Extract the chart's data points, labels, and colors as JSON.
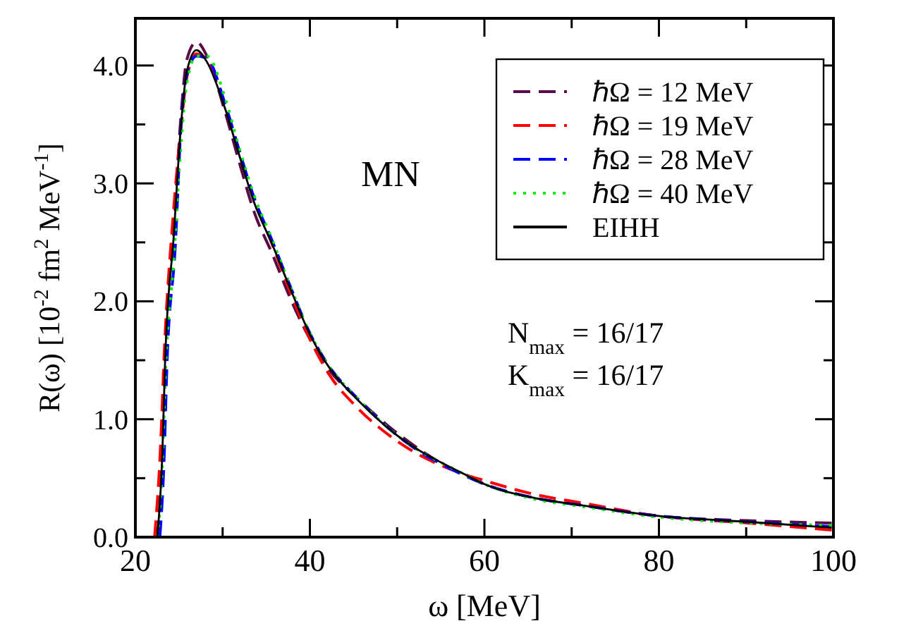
{
  "chart_data": {
    "type": "line",
    "xlabel": "ω [MeV]",
    "ylabel": "R(ω) [10$^{-2}$ fm$^{2}$ MeV$^{-1}$]",
    "annotations": [
      "MN",
      "N$_{max}$ = 16/17",
      "K$_{max}$ = 16/17"
    ],
    "xlim": [
      20,
      100
    ],
    "xticks": [
      20,
      {
        "value": 30,
        "label": null
      },
      40,
      {
        "value": 50,
        "label": null
      },
      60,
      {
        "value": 70,
        "label": null
      },
      80,
      {
        "value": 90,
        "label": null
      },
      100
    ],
    "ylim": [
      0,
      4.4
    ],
    "yticks": [
      {
        "value": 0,
        "label": "0.0"
      },
      {
        "value": 0.5,
        "label": null
      },
      {
        "value": 1,
        "label": "1.0"
      },
      {
        "value": 1.5,
        "label": null
      },
      {
        "value": 2,
        "label": "2.0"
      },
      {
        "value": 2.5,
        "label": null
      },
      {
        "value": 3,
        "label": "3.0"
      },
      {
        "value": 3.5,
        "label": null
      },
      {
        "value": 4,
        "label": "4.0"
      }
    ],
    "grid": false,
    "legend": "top right",
    "marker": "none",
    "x": [
      22.5,
      23.1,
      23.4,
      24.4,
      25.2,
      25.9,
      27,
      28.2,
      30.3,
      31.9,
      33.6,
      35.7,
      37.9,
      40,
      42.2,
      45.4,
      49.7,
      57.8,
      60,
      65.9,
      71.2,
      79.9,
      90.1,
      99.8
    ],
    "series": [
      {
        "name": "ℏΩ = 12 MeV",
        "color": "#5a0a46",
        "line_style": "dashed",
        "values": [
          0,
          0.75,
          1.5,
          2.6,
          3.55,
          4.05,
          4.2,
          4.08,
          3.6,
          3.18,
          2.76,
          2.4,
          2.0,
          1.68,
          1.42,
          1.18,
          0.9,
          0.52,
          0.45,
          0.33,
          0.27,
          0.18,
          0.14,
          0.12
        ]
      },
      {
        "name": "ℏΩ = 19 MeV",
        "color": "#ff0000",
        "line_style": "dashed",
        "x": [
          22.2,
          22.9,
          23.3,
          24.3,
          25.2,
          25.9,
          27,
          28.2,
          30.3,
          31.9,
          33.6,
          35.7,
          37.9,
          40,
          42.2,
          45.4,
          49.7,
          57.8,
          60,
          65.9,
          71.2,
          79.9,
          90.1,
          99.8
        ],
        "values": [
          0,
          0.8,
          1.55,
          2.7,
          3.45,
          3.9,
          4.1,
          4.05,
          3.65,
          3.27,
          2.87,
          2.48,
          2.05,
          1.68,
          1.38,
          1.1,
          0.83,
          0.53,
          0.48,
          0.36,
          0.29,
          0.18,
          0.12,
          0.06
        ]
      },
      {
        "name": "ℏΩ = 28 MeV",
        "color": "#0000ff",
        "line_style": "dashed",
        "x": [
          22.8,
          23.3,
          23.6,
          24.6,
          25.2,
          25.9,
          27,
          28.2,
          30.3,
          31.9,
          33.6,
          35.7,
          37.9,
          40,
          42.2,
          45.4,
          49.7,
          57.8,
          60,
          65.9,
          71.2,
          79.9,
          90.1,
          99.8
        ],
        "values": [
          0,
          0.68,
          1.42,
          2.5,
          3.45,
          3.92,
          4.08,
          4.06,
          3.67,
          3.28,
          2.88,
          2.51,
          2.1,
          1.73,
          1.45,
          1.18,
          0.88,
          0.52,
          0.45,
          0.33,
          0.27,
          0.18,
          0.13,
          0.09
        ]
      },
      {
        "name": "ℏΩ = 40 MeV",
        "color": "#00ee00",
        "line_style": "dotted",
        "values": [
          0,
          0.62,
          1.3,
          2.35,
          3.3,
          3.85,
          4.08,
          4.08,
          3.72,
          3.3,
          2.9,
          2.52,
          2.1,
          1.73,
          1.45,
          1.18,
          0.88,
          0.53,
          0.45,
          0.32,
          0.26,
          0.17,
          0.12,
          0.1
        ]
      },
      {
        "name": "EIHH",
        "color": "#000000",
        "line_style": "solid",
        "values": [
          0,
          0.73,
          1.48,
          2.56,
          3.47,
          3.95,
          4.13,
          4.03,
          3.63,
          3.24,
          2.84,
          2.48,
          2.08,
          1.72,
          1.44,
          1.17,
          0.88,
          0.53,
          0.45,
          0.33,
          0.27,
          0.18,
          0.13,
          0.08
        ]
      }
    ]
  }
}
